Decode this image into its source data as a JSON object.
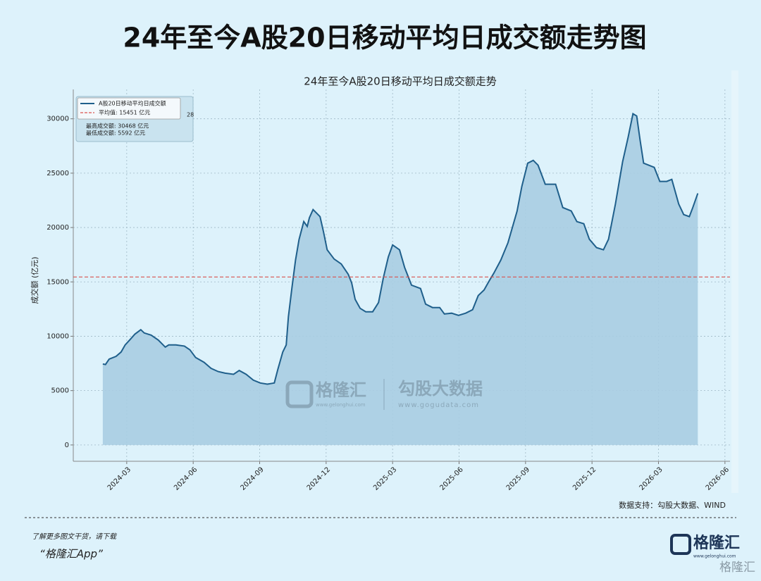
{
  "header": {
    "title": "24年至今A股20日移动平均日成交额走势图"
  },
  "chart_data": {
    "type": "area",
    "title": "24年至今A股20日移动平均日成交额走势",
    "ylabel": "成交额 (亿元)",
    "x": [
      2024.077,
      2024.087,
      2024.101,
      2024.127,
      2024.146,
      2024.161,
      2024.18,
      2024.198,
      2024.22,
      2024.233,
      2024.259,
      2024.286,
      2024.312,
      2024.325,
      2024.352,
      2024.384,
      2024.405,
      2024.426,
      2024.458,
      2024.484,
      2024.511,
      2024.537,
      2024.569,
      2024.59,
      2024.616,
      2024.643,
      2024.669,
      2024.696,
      2024.722,
      2024.735,
      2024.754,
      2024.767,
      2024.775,
      2024.788,
      2024.802,
      2024.815,
      2024.833,
      2024.846,
      2024.854,
      2024.868,
      2024.894,
      2024.907,
      2024.921,
      2024.947,
      2024.974,
      2025.0,
      2025.013,
      2025.026,
      2025.045,
      2025.066,
      2025.092,
      2025.114,
      2025.132,
      2025.151,
      2025.167,
      2025.193,
      2025.212,
      2025.238,
      2025.272,
      2025.291,
      2025.317,
      2025.344,
      2025.362,
      2025.389,
      2025.415,
      2025.442,
      2025.468,
      2025.489,
      2025.511,
      2025.529,
      2025.548,
      2025.574,
      2025.601,
      2025.635,
      2025.653,
      2025.675,
      2025.696,
      2025.714,
      2025.741,
      2025.78,
      2025.807,
      2025.839,
      2025.86,
      2025.886,
      2025.907,
      2025.934,
      2025.96,
      2025.979,
      2026.005,
      2026.032,
      2026.053,
      2026.071,
      2026.085,
      2026.098,
      2026.111,
      2026.151,
      2026.172,
      2026.198,
      2026.217,
      2026.243,
      2026.262,
      2026.283,
      2026.296,
      2026.315
    ],
    "series": [
      {
        "name": "A股20日移动平均日成交额",
        "color": "#1f5f8b",
        "fill": "#a8cde2",
        "values": [
          7450,
          7400,
          7900,
          8150,
          8550,
          9200,
          9700,
          10200,
          10600,
          10300,
          10100,
          9650,
          9000,
          9200,
          9200,
          9100,
          8750,
          8050,
          7600,
          7050,
          6750,
          6600,
          6500,
          6850,
          6500,
          5960,
          5700,
          5592,
          5700,
          6930,
          8550,
          9200,
          11800,
          14400,
          17000,
          18900,
          20550,
          20100,
          20900,
          21650,
          21000,
          19600,
          17950,
          17100,
          16650,
          15700,
          14900,
          13400,
          12570,
          12250,
          12250,
          13100,
          15360,
          17300,
          18400,
          17950,
          16330,
          14700,
          14390,
          12960,
          12640,
          12640,
          12050,
          12120,
          11920,
          12120,
          12440,
          13740,
          14260,
          15040,
          15810,
          17000,
          18600,
          21500,
          23790,
          25920,
          26180,
          25730,
          23980,
          23980,
          21840,
          21520,
          20540,
          20350,
          18920,
          18150,
          17950,
          18920,
          22160,
          26050,
          28320,
          30468,
          30260,
          28000,
          25920,
          25530,
          24240,
          24240,
          24430,
          22160,
          21190,
          21000,
          21840,
          23140
        ]
      }
    ],
    "mean": {
      "label": "平均值: 15451 亿元",
      "value": 15451,
      "color": "#d9534f"
    },
    "stats_clipped": "28",
    "stats": [
      "最高成交额: 30468 亿元",
      "最低成交额: 5592 亿元"
    ],
    "xlim": [
      2023.966,
      2026.436
    ],
    "xticks": [
      {
        "value": 2024.167,
        "label": "2024-03"
      },
      {
        "value": 2024.417,
        "label": "2024-06"
      },
      {
        "value": 2024.667,
        "label": "2024-09"
      },
      {
        "value": 2024.917,
        "label": "2024-12"
      },
      {
        "value": 2025.167,
        "label": "2025-03"
      },
      {
        "value": 2025.417,
        "label": "2025-06"
      },
      {
        "value": 2025.667,
        "label": "2025-09"
      },
      {
        "value": 2025.917,
        "label": "2025-12"
      },
      {
        "value": 2026.167,
        "label": "2026-03"
      },
      {
        "value": 2026.417,
        "label": "2026-06"
      }
    ],
    "ylim": [
      -1500,
      32700
    ],
    "yticks": [
      0,
      5000,
      10000,
      15000,
      20000,
      25000,
      30000
    ],
    "grid": true,
    "legend": "upper left"
  },
  "watermarks": {
    "brand": "格隆汇",
    "brand_url": "www.gelonghui.com",
    "data_brand": "勾股大数据",
    "data_url": "www.gogudata.com"
  },
  "source": "数据支持：勾股大数据、WIND",
  "footer": {
    "prompt": "了解更多图文干货，请下载",
    "app": "“格隆汇App”",
    "logo": "格隆汇",
    "logo_url": "www.gelonghui.com",
    "corner": "格隆汇"
  }
}
